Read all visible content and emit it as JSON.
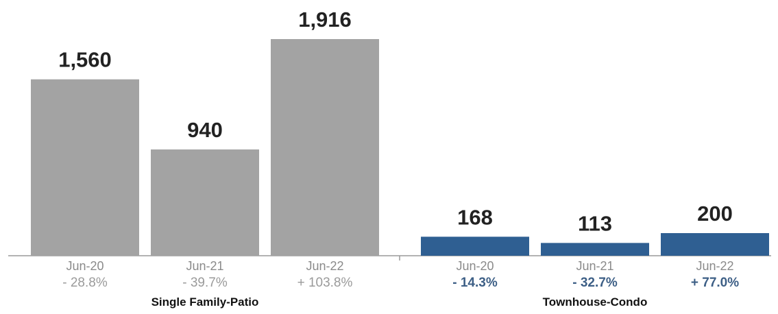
{
  "chart_data": {
    "type": "bar",
    "groups": [
      {
        "name": "Single Family-Patio",
        "color": "#a3a3a3",
        "change_color": "#9a9a9a",
        "categories": [
          "Jun-20",
          "Jun-21",
          "Jun-22"
        ],
        "values": [
          1560,
          940,
          1916
        ],
        "value_labels": [
          "1,560",
          "940",
          "1,916"
        ],
        "changes": [
          "- 28.8%",
          "- 39.7%",
          "+ 103.8%"
        ]
      },
      {
        "name": "Townhouse-Condo",
        "color": "#2f5f92",
        "change_color": "#3d5f86",
        "categories": [
          "Jun-20",
          "Jun-21",
          "Jun-22"
        ],
        "values": [
          168,
          113,
          200
        ],
        "value_labels": [
          "168",
          "113",
          "200"
        ],
        "changes": [
          "- 14.3%",
          "- 32.7%",
          "+ 77.0%"
        ]
      }
    ],
    "title": "",
    "xlabel": "",
    "ylabel": "",
    "ylim": [
      0,
      1916
    ],
    "grid": false,
    "legend": "none"
  }
}
